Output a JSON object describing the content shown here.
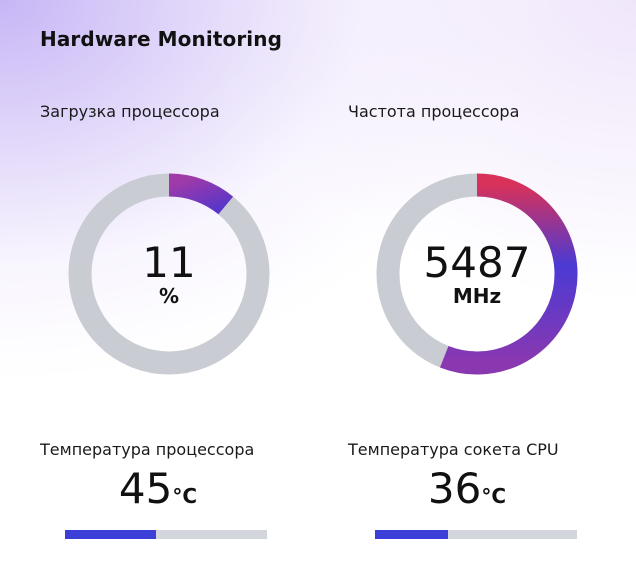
{
  "header": {
    "title": "Hardware Monitoring"
  },
  "cpu_load": {
    "label": "Загрузка процессора",
    "value": "11",
    "unit": "%",
    "fraction": 0.11
  },
  "cpu_frequency": {
    "label": "Частота процессора",
    "value": "5487",
    "unit": "MHz",
    "fraction": 0.56
  },
  "cpu_temperature": {
    "label": "Температура процессора",
    "value": "45",
    "unit": "°C",
    "fraction": 0.45
  },
  "socket_temperature": {
    "label": "Температура сокета CPU",
    "value": "36",
    "unit": "°C",
    "fraction": 0.36
  },
  "colors": {
    "track": "#c9ccd3",
    "load_arc_start": "#a03aa8",
    "load_arc_end": "#5a36c8",
    "freq_arc_start": "#d8315a",
    "freq_arc_mid": "#4b3ad4",
    "freq_arc_end": "#8a38b0",
    "bar_track": "#d3d6dc",
    "bar_fill": "#3b3fd8"
  },
  "icons": {
    "gauge": "ring-gauge-icon"
  }
}
